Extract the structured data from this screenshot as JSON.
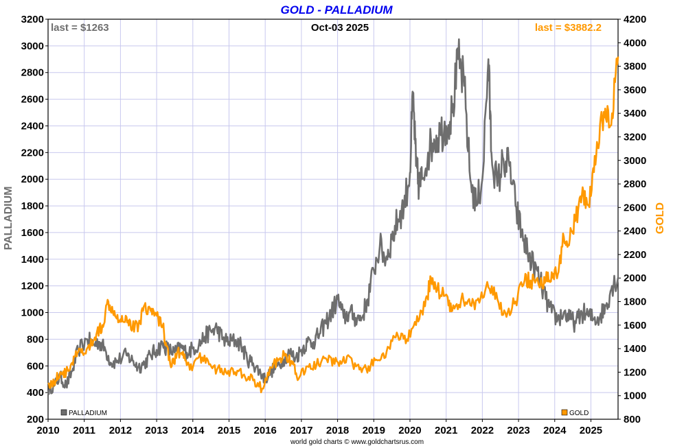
{
  "colors": {
    "palladium": "#6e6e6e",
    "gold": "#ff9900",
    "title": "#0000ee",
    "grid": "#c8c8ee"
  },
  "chart_data": {
    "type": "line",
    "title": "GOLD - PALLADIUM",
    "date_label": "Oct-03  2025",
    "credit": "world gold charts © www.goldchartsrus.com",
    "x_labels": [
      "2010",
      "2011",
      "2012",
      "2013",
      "2014",
      "2015",
      "2016",
      "2017",
      "2018",
      "2019",
      "2020",
      "2021",
      "2022",
      "2023",
      "2024",
      "2025"
    ],
    "xlim": [
      "2010-01",
      "2025-10"
    ],
    "grid": true,
    "left_axis": {
      "label": "PALLADIUM",
      "ylim": [
        200,
        3200
      ],
      "ticks": [
        200,
        400,
        600,
        800,
        1000,
        1200,
        1400,
        1600,
        1800,
        2000,
        2200,
        2400,
        2600,
        2800,
        3000,
        3200
      ]
    },
    "right_axis": {
      "label": "GOLD",
      "ylim": [
        800,
        4200
      ],
      "ticks": [
        800,
        1000,
        1200,
        1400,
        1600,
        1800,
        2000,
        2200,
        2400,
        2600,
        2800,
        3000,
        3200,
        3400,
        3600,
        3800,
        4000,
        4200
      ]
    },
    "series": [
      {
        "name": "PALLADIUM",
        "axis": "left",
        "last_label": "last = $1263",
        "x": [
          "2010-01",
          "2010-03",
          "2010-05",
          "2010-07",
          "2010-09",
          "2010-11",
          "2011-02",
          "2011-04",
          "2011-06",
          "2011-08",
          "2011-10",
          "2011-12",
          "2012-03",
          "2012-05",
          "2012-07",
          "2012-09",
          "2012-11",
          "2013-01",
          "2013-03",
          "2013-05",
          "2013-07",
          "2013-09",
          "2013-11",
          "2014-01",
          "2014-03",
          "2014-05",
          "2014-07",
          "2014-09",
          "2014-11",
          "2015-01",
          "2015-03",
          "2015-05",
          "2015-07",
          "2015-09",
          "2015-11",
          "2016-01",
          "2016-03",
          "2016-05",
          "2016-07",
          "2016-09",
          "2016-11",
          "2017-01",
          "2017-03",
          "2017-05",
          "2017-07",
          "2017-09",
          "2017-11",
          "2018-01",
          "2018-03",
          "2018-05",
          "2018-07",
          "2018-09",
          "2018-11",
          "2019-01",
          "2019-03",
          "2019-05",
          "2019-07",
          "2019-09",
          "2019-11",
          "2020-01",
          "2020-02",
          "2020-03",
          "2020-04",
          "2020-05",
          "2020-07",
          "2020-09",
          "2020-11",
          "2021-01",
          "2021-03",
          "2021-05",
          "2021-07",
          "2021-09",
          "2021-11",
          "2022-01",
          "2022-03",
          "2022-04",
          "2022-06",
          "2022-08",
          "2022-10",
          "2022-12",
          "2023-02",
          "2023-04",
          "2023-06",
          "2023-08",
          "2023-10",
          "2023-12",
          "2024-02",
          "2024-04",
          "2024-06",
          "2024-08",
          "2024-10",
          "2024-12",
          "2025-02",
          "2025-04",
          "2025-06",
          "2025-08",
          "2025-10"
        ],
        "y": [
          420,
          450,
          520,
          450,
          560,
          720,
          800,
          760,
          780,
          720,
          620,
          640,
          680,
          640,
          590,
          620,
          680,
          720,
          760,
          720,
          700,
          740,
          700,
          730,
          760,
          820,
          860,
          880,
          800,
          780,
          790,
          760,
          650,
          620,
          560,
          500,
          560,
          600,
          650,
          700,
          660,
          720,
          780,
          780,
          840,
          920,
          1000,
          1100,
          960,
          1000,
          960,
          960,
          1100,
          1320,
          1500,
          1400,
          1550,
          1700,
          1800,
          2050,
          2650,
          2100,
          1950,
          2000,
          2200,
          2300,
          2350,
          2400,
          2500,
          2900,
          2700,
          2000,
          1800,
          2000,
          2900,
          2200,
          1950,
          2150,
          2100,
          1800,
          1600,
          1450,
          1350,
          1250,
          1100,
          1000,
          950,
          1000,
          950,
          920,
          1000,
          980,
          950,
          970,
          1050,
          1200,
          1263
        ]
      },
      {
        "name": "GOLD",
        "axis": "right",
        "last_label": "last = $3882.2",
        "x": [
          "2010-01",
          "2010-03",
          "2010-05",
          "2010-07",
          "2010-09",
          "2010-11",
          "2011-01",
          "2011-03",
          "2011-05",
          "2011-07",
          "2011-09",
          "2011-11",
          "2012-01",
          "2012-03",
          "2012-05",
          "2012-07",
          "2012-09",
          "2012-11",
          "2013-01",
          "2013-03",
          "2013-04",
          "2013-06",
          "2013-08",
          "2013-10",
          "2013-12",
          "2014-03",
          "2014-06",
          "2014-09",
          "2014-12",
          "2015-03",
          "2015-06",
          "2015-09",
          "2015-12",
          "2016-03",
          "2016-06",
          "2016-08",
          "2016-10",
          "2016-12",
          "2017-03",
          "2017-06",
          "2017-09",
          "2017-12",
          "2018-03",
          "2018-06",
          "2018-09",
          "2018-12",
          "2019-03",
          "2019-06",
          "2019-09",
          "2019-12",
          "2020-03",
          "2020-06",
          "2020-08",
          "2020-10",
          "2021-01",
          "2021-03",
          "2021-06",
          "2021-09",
          "2021-12",
          "2022-03",
          "2022-06",
          "2022-09",
          "2022-12",
          "2023-03",
          "2023-05",
          "2023-08",
          "2023-10",
          "2023-12",
          "2024-02",
          "2024-04",
          "2024-06",
          "2024-08",
          "2024-10",
          "2024-12",
          "2025-02",
          "2025-04",
          "2025-06",
          "2025-08",
          "2025-10"
        ],
        "y": [
          1100,
          1110,
          1200,
          1190,
          1280,
          1370,
          1360,
          1420,
          1520,
          1600,
          1800,
          1720,
          1650,
          1670,
          1580,
          1600,
          1770,
          1720,
          1680,
          1600,
          1450,
          1250,
          1380,
          1320,
          1220,
          1330,
          1300,
          1220,
          1200,
          1200,
          1180,
          1130,
          1060,
          1240,
          1320,
          1350,
          1270,
          1140,
          1250,
          1260,
          1320,
          1270,
          1330,
          1270,
          1200,
          1260,
          1300,
          1410,
          1510,
          1480,
          1600,
          1760,
          2000,
          1900,
          1860,
          1720,
          1820,
          1770,
          1790,
          1920,
          1820,
          1670,
          1800,
          1980,
          1980,
          1920,
          1980,
          2050,
          2030,
          2350,
          2330,
          2500,
          2700,
          2620,
          2900,
          3300,
          3350,
          3400,
          3882.2
        ]
      }
    ]
  }
}
